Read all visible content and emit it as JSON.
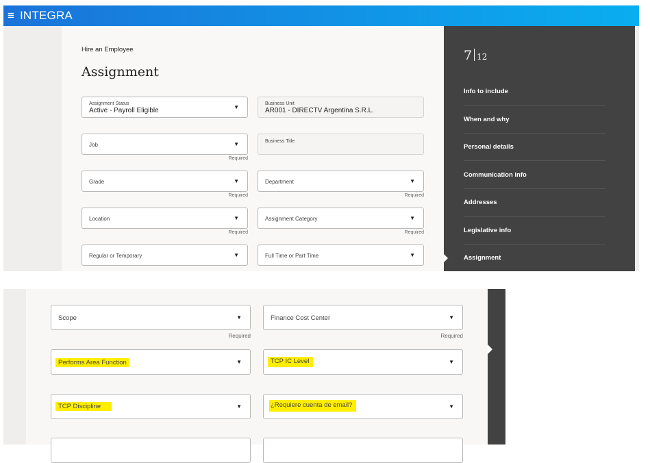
{
  "header": {
    "menu_icon": "hamburger-icon",
    "brand": "INTEGRA"
  },
  "page": {
    "breadcrumb": "Hire an Employee",
    "title": "Assignment"
  },
  "progress": {
    "current": "7",
    "total": "12"
  },
  "nav": [
    "Info to include",
    "When and why",
    "Personal details",
    "Communication info",
    "Addresses",
    "Legislative info",
    "Assignment"
  ],
  "required": "Required",
  "top_fields": [
    {
      "label": "Assignment Status",
      "value": "Active - Payroll Eligible"
    },
    {
      "label": "Business Unit",
      "value": "AR001 - DIRECTV Argentina S.R.L."
    },
    {
      "label": "Job"
    },
    {
      "label": "Business Title"
    },
    {
      "label": "Grade"
    },
    {
      "label": "Department"
    },
    {
      "label": "Location"
    },
    {
      "label": "Assignment Category"
    },
    {
      "label": "Regular or Temporary"
    },
    {
      "label": "Full Time or Part Time"
    }
  ],
  "bottom_fields": [
    {
      "label": "Scope"
    },
    {
      "label": "Finance Cost Center"
    },
    {
      "label": "Performs Area Function"
    },
    {
      "label": "TCP IC Level"
    },
    {
      "label": "TCP Discipline"
    },
    {
      "label": "¿Requiere cuenta de email?"
    }
  ],
  "colors": {
    "header_start": "#1a73d9",
    "header_end": "#0aaef0",
    "panel": "#424242",
    "highlight": "#ffee00"
  }
}
